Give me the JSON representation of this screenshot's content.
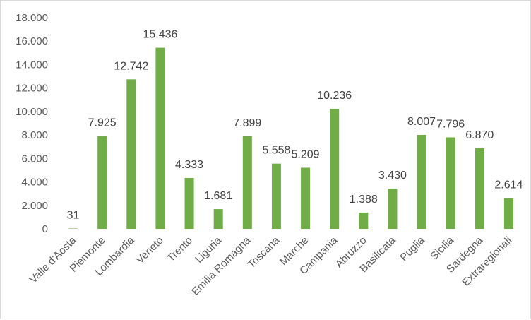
{
  "chart_data": {
    "type": "bar",
    "title": "",
    "xlabel": "",
    "ylabel": "",
    "ylim": [
      0,
      18000
    ],
    "ytick_step": 2000,
    "ytick_labels": [
      "0",
      "2.000",
      "4.000",
      "6.000",
      "8.000",
      "10.000",
      "12.000",
      "14.000",
      "16.000",
      "18.000"
    ],
    "grid": false,
    "legend": "none",
    "bar_color": "#70ad47",
    "categories": [
      "Valle d'Aosta",
      "Piemonte",
      "Lombardia",
      "Veneto",
      "Trento",
      "Liguria",
      "Emilia Romagna",
      "Toscana",
      "Marche",
      "Campania",
      "Abruzzo",
      "Basilicata",
      "Puglia",
      "Sicilia",
      "Sardegna",
      "Extraregionali"
    ],
    "values": [
      31,
      7925,
      12742,
      15436,
      4333,
      1681,
      7899,
      5558,
      5209,
      10236,
      1388,
      3430,
      8007,
      7796,
      6870,
      2614
    ],
    "value_labels": [
      "31",
      "7.925",
      "12.742",
      "15.436",
      "4.333",
      "1.681",
      "7.899",
      "5.558",
      "5.209",
      "10.236",
      "1.388",
      "3.430",
      "8.007",
      "7.796",
      "6.870",
      "2.614"
    ]
  }
}
